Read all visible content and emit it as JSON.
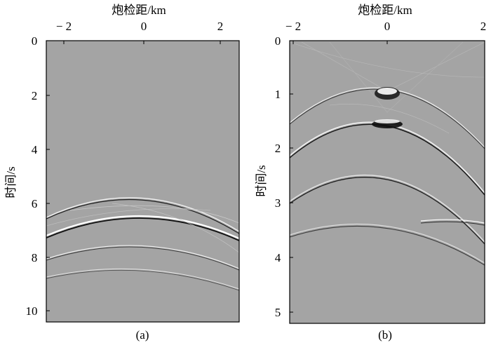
{
  "panels": [
    {
      "id": "a",
      "caption": "(a)",
      "x_title": "炮检距/km",
      "y_title": "时间/s",
      "x_ticks": [
        "− 2",
        "0",
        "2"
      ],
      "y_ticks": [
        "0",
        "2",
        "4",
        "6",
        "8",
        "10"
      ]
    },
    {
      "id": "b",
      "caption": "(b)",
      "x_title": "炮检距/km",
      "y_title": "时间/s",
      "x_ticks": [
        "− 2",
        "0",
        "2"
      ],
      "y_ticks": [
        "0",
        "1",
        "2",
        "3",
        "4",
        "5"
      ]
    }
  ],
  "colors": {
    "background": "#a4a4a4",
    "event_dark": "#111111",
    "event_light": "#ffffff"
  }
}
